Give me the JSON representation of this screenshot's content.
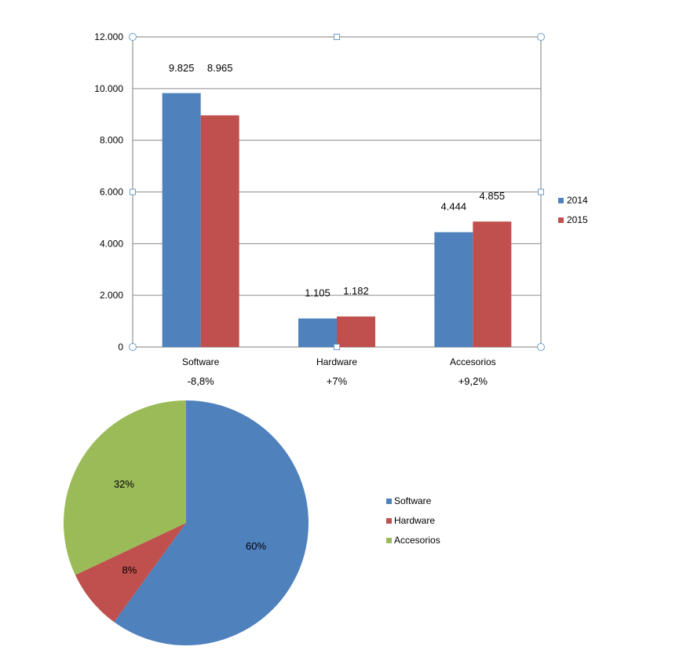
{
  "chart_data": [
    {
      "type": "bar",
      "categories": [
        "Software",
        "Hardware",
        "Accesorios"
      ],
      "category_notes": [
        "-8,8%",
        "+7%",
        "+9,2%"
      ],
      "series": [
        {
          "name": "2014",
          "values": [
            9825,
            1105,
            4444
          ],
          "labels": [
            "9.825",
            "1.105",
            "4.444"
          ],
          "color": "#4f81bd"
        },
        {
          "name": "2015",
          "values": [
            8965,
            1182,
            4855
          ],
          "labels": [
            "8.965",
            "1.182",
            "4.855"
          ],
          "color": "#c0504d"
        }
      ],
      "ylim": [
        0,
        12000
      ],
      "yticks": [
        0,
        2000,
        4000,
        6000,
        8000,
        10000,
        12000
      ],
      "ytick_labels": [
        "0",
        "2.000",
        "4.000",
        "6.000",
        "8.000",
        "10.000",
        "12.000"
      ],
      "grid": true,
      "legend_position": "right"
    },
    {
      "type": "pie",
      "categories": [
        "Software",
        "Hardware",
        "Accesorios"
      ],
      "values": [
        60,
        8,
        32
      ],
      "labels": [
        "60%",
        "8%",
        "32%"
      ],
      "colors": [
        "#4f81bd",
        "#c0504d",
        "#9bbb59"
      ],
      "legend_position": "right"
    }
  ]
}
